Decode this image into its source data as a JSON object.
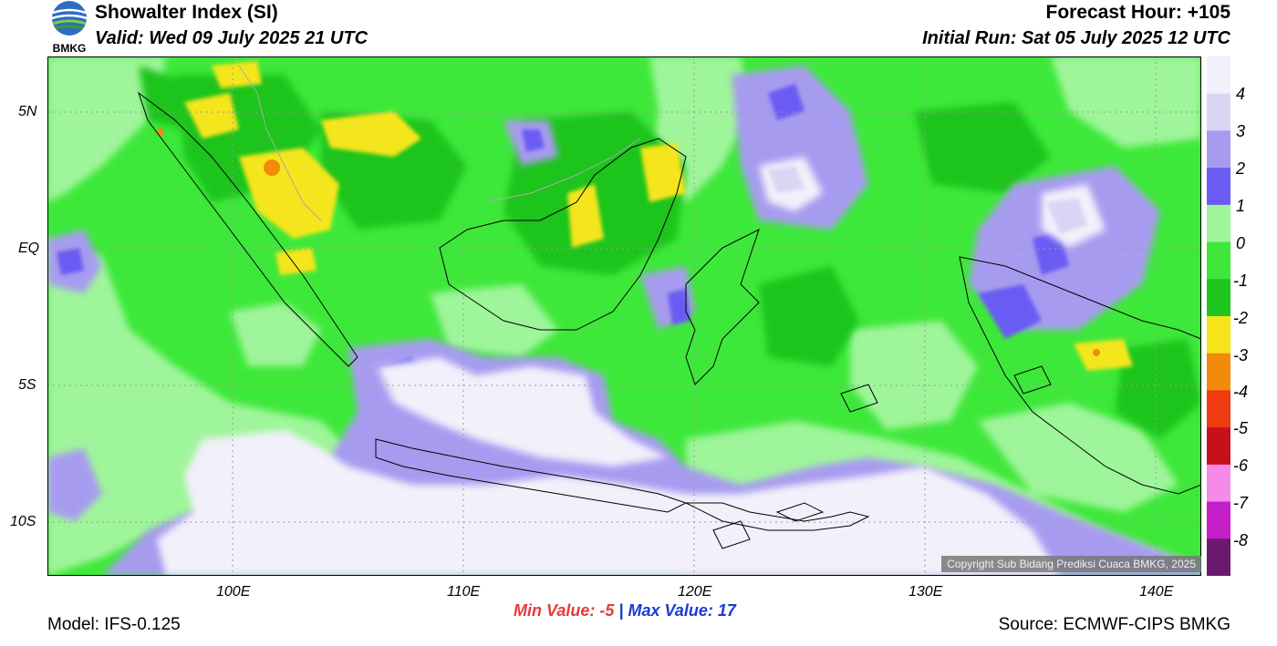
{
  "header": {
    "title": "Showalter Index (SI)",
    "valid": "Valid: Wed 09 July 2025 21 UTC",
    "forecast_hour": "Forecast Hour: +105",
    "initial_run": "Initial Run: Sat 05 July 2025 12 UTC"
  },
  "logo": {
    "text": "BMKG",
    "icon": "bmkg-logo"
  },
  "map": {
    "lat_labels": [
      {
        "text": "5N",
        "lat": 5
      },
      {
        "text": "EQ",
        "lat": 0
      },
      {
        "text": "5S",
        "lat": -5
      },
      {
        "text": "10S",
        "lat": -10
      }
    ],
    "lon_labels": [
      {
        "text": "100E",
        "lon": 100
      },
      {
        "text": "110E",
        "lon": 110
      },
      {
        "text": "120E",
        "lon": 120
      },
      {
        "text": "130E",
        "lon": 130
      },
      {
        "text": "140E",
        "lon": 140
      }
    ],
    "extent": {
      "lon_min": 92,
      "lon_max": 142,
      "lat_min": -12,
      "lat_max": 7
    },
    "copyright": "Copyright Sub Bidang Prediksi Cuaca BMKG, 2025"
  },
  "colorbar": {
    "labels": [
      "4",
      "3",
      "2",
      "1",
      "0",
      "-1",
      "-2",
      "-3",
      "-4",
      "-5",
      "-6",
      "-7",
      "-8"
    ],
    "colors": [
      "#f2f0fa",
      "#d9d6f5",
      "#a79bf0",
      "#6a5cf2",
      "#9ff59a",
      "#3ee83a",
      "#1fc41f",
      "#f5e51a",
      "#f28a0c",
      "#ef3a12",
      "#c8101a",
      "#f58ae8",
      "#c41ec8",
      "#6a1a6e"
    ]
  },
  "footer": {
    "min_label": "Min Value:",
    "min_value": "-5",
    "separator": "|",
    "max_label": "Max Value:",
    "max_value": "17",
    "model": "Model: IFS-0.125",
    "source": "Source: ECMWF-CIPS BMKG"
  }
}
